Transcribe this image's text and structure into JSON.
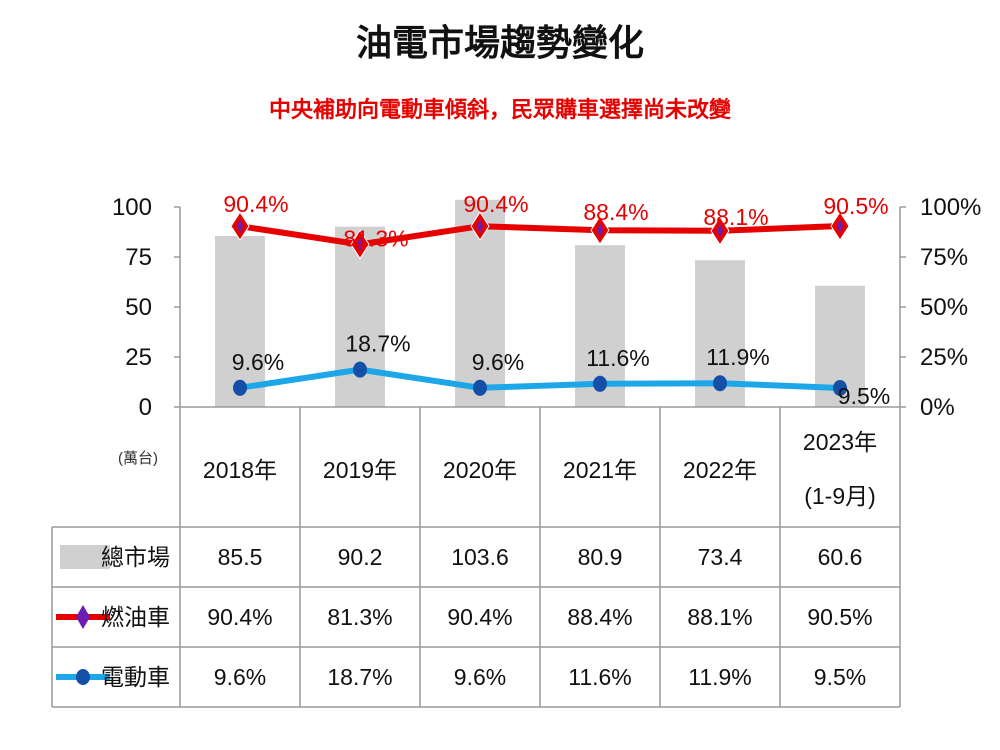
{
  "title": "油電市場趨勢變化",
  "subtitle": "中央補助向電動車傾斜，民眾購車選擇尚未改變",
  "colors": {
    "bar": "#d0d0d0",
    "gas": "#e60000",
    "gas_marker": "#6a1fb3",
    "ev": "#1ea7e8",
    "ev_marker": "#1450a8",
    "grid": "#9a9a9a"
  },
  "chart_data": {
    "type": "bar",
    "categories": [
      "2018年",
      "2019年",
      "2020年",
      "2021年",
      "2022年",
      "2023年"
    ],
    "category_notes": [
      "",
      "",
      "",
      "",
      "",
      "(1-9月)"
    ],
    "unit_label": "(萬台)",
    "left_axis": {
      "ylim": [
        0,
        100
      ],
      "ticks": [
        "100",
        "75",
        "50",
        "25",
        "0"
      ]
    },
    "right_axis": {
      "ylim": [
        0,
        100
      ],
      "ticks": [
        "100%",
        "75%",
        "50%",
        "25%",
        "0%"
      ]
    },
    "series": [
      {
        "name": "總市場",
        "kind": "bar",
        "axis": "left",
        "values": [
          85.5,
          90.2,
          103.6,
          80.9,
          73.4,
          60.6
        ],
        "labels": [
          "85.5",
          "90.2",
          "103.6",
          "80.9",
          "73.4",
          "60.6"
        ]
      },
      {
        "name": "燃油車",
        "kind": "line",
        "axis": "right",
        "values": [
          90.4,
          81.3,
          90.4,
          88.4,
          88.1,
          90.5
        ],
        "labels": [
          "90.4%",
          "81.3%",
          "90.4%",
          "88.4%",
          "88.1%",
          "90.5%"
        ]
      },
      {
        "name": "電動車",
        "kind": "line",
        "axis": "right",
        "values": [
          9.6,
          18.7,
          9.6,
          11.6,
          11.9,
          9.5
        ],
        "labels": [
          "9.6%",
          "18.7%",
          "9.6%",
          "11.6%",
          "11.9%",
          "9.5%"
        ]
      }
    ],
    "grid": false,
    "legend": "table-below"
  }
}
